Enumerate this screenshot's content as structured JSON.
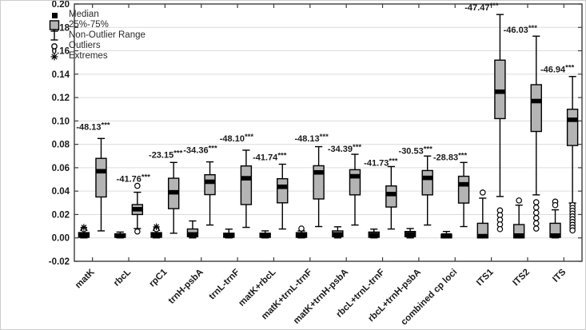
{
  "legend": {
    "items": [
      {
        "label": "Median",
        "icon": "median-square"
      },
      {
        "label": "25%-75%",
        "icon": "quartile-box"
      },
      {
        "label": "Non-Outlier Range",
        "icon": "whisker-range"
      },
      {
        "label": "Outliers",
        "icon": "outlier-circle"
      },
      {
        "label": "Extremes",
        "icon": "extreme-asterisk"
      }
    ]
  },
  "chart_data": {
    "type": "box",
    "title": "",
    "xlabel": "",
    "ylabel": "",
    "ylim": [
      -0.02,
      0.2
    ],
    "grid": true,
    "legend_position": "top-left",
    "yticks": [
      {
        "value": 0.2,
        "label": "0.20"
      },
      {
        "value": 0.18,
        "label": "0.18"
      },
      {
        "value": 0.16,
        "label": "0.16"
      },
      {
        "value": 0.14,
        "label": "0.14"
      },
      {
        "value": 0.12,
        "label": "0.12"
      },
      {
        "value": 0.1,
        "label": "0.10"
      },
      {
        "value": 0.08,
        "label": "0.08"
      },
      {
        "value": 0.06,
        "label": "0.06"
      },
      {
        "value": 0.04,
        "label": "0.04"
      },
      {
        "value": 0.02,
        "label": "0.02"
      },
      {
        "value": 0.0,
        "label": "0.00"
      },
      {
        "value": -0.02,
        "label": "-0.02"
      }
    ],
    "colors": {
      "box_fill": "#b4b4b4",
      "box_stroke": "#000000",
      "median": "#000000",
      "grid": "#dcdcdc",
      "axis": "#3c3c3c",
      "text": "#1a1a1a"
    },
    "categories": [
      {
        "label": "matK",
        "annotation": "-48.13***",
        "annotation_y": 0.0925,
        "annotation_dx": -10,
        "left": {
          "low": 0.0,
          "q1": 0.0005,
          "median": 0.0025,
          "q3": 0.0045,
          "high": 0.0065,
          "outliers": [
            0.0075
          ],
          "extremes": [
            0.009
          ]
        },
        "right": {
          "low": 0.006,
          "q1": 0.035,
          "median": 0.057,
          "q3": 0.068,
          "high": 0.085,
          "outliers": [],
          "extremes": []
        }
      },
      {
        "label": "rbcL",
        "annotation": "-41.76***",
        "annotation_y": 0.048,
        "annotation_dx": -5,
        "left": {
          "low": 0.0,
          "q1": 0.0005,
          "median": 0.002,
          "q3": 0.0035,
          "high": 0.005,
          "outliers": [],
          "extremes": []
        },
        "right": {
          "low": 0.008,
          "q1": 0.02,
          "median": 0.0245,
          "q3": 0.0285,
          "high": 0.039,
          "outliers": [
            0.0445,
            0.0055
          ],
          "extremes": []
        }
      },
      {
        "label": "rpC1",
        "annotation": "-23.15***",
        "annotation_y": 0.0685,
        "annotation_dx": -10,
        "left": {
          "low": 0.0,
          "q1": 0.0005,
          "median": 0.0025,
          "q3": 0.0045,
          "high": 0.0065,
          "outliers": [
            0.0075
          ],
          "extremes": [
            0.0095
          ]
        },
        "right": {
          "low": 0.004,
          "q1": 0.025,
          "median": 0.039,
          "q3": 0.051,
          "high": 0.0645,
          "outliers": [],
          "extremes": []
        }
      },
      {
        "label": "trnH-psbA",
        "annotation": "-34.36***",
        "annotation_y": 0.0725,
        "annotation_dx": -12,
        "left": {
          "low": 0.0,
          "q1": 0.001,
          "median": 0.003,
          "q3": 0.0076,
          "high": 0.0145,
          "outliers": [],
          "extremes": []
        },
        "right": {
          "low": 0.011,
          "q1": 0.037,
          "median": 0.048,
          "q3": 0.054,
          "high": 0.065,
          "outliers": [],
          "extremes": []
        }
      },
      {
        "label": "trnL-trnF",
        "annotation": "-48.10***",
        "annotation_y": 0.0825,
        "annotation_dx": -12,
        "left": {
          "low": 0.0,
          "q1": 0.0005,
          "median": 0.002,
          "q3": 0.004,
          "high": 0.0075,
          "outliers": [],
          "extremes": []
        },
        "right": {
          "low": 0.009,
          "q1": 0.0285,
          "median": 0.051,
          "q3": 0.0615,
          "high": 0.075,
          "outliers": [],
          "extremes": []
        }
      },
      {
        "label": "matK+rbcL",
        "annotation": "-41.74***",
        "annotation_y": 0.0665,
        "annotation_dx": -16,
        "left": {
          "low": 0.0,
          "q1": 0.0005,
          "median": 0.002,
          "q3": 0.004,
          "high": 0.006,
          "outliers": [],
          "extremes": []
        },
        "right": {
          "low": 0.0076,
          "q1": 0.03,
          "median": 0.0437,
          "q3": 0.0506,
          "high": 0.063,
          "outliers": [],
          "extremes": []
        }
      },
      {
        "label": "matK+trnL-trnF",
        "annotation": "-48.13***",
        "annotation_y": 0.0825,
        "annotation_dx": -9,
        "left": {
          "low": 0.0,
          "q1": 0.0005,
          "median": 0.0025,
          "q3": 0.0045,
          "high": 0.006,
          "outliers": [
            0.008
          ],
          "extremes": []
        },
        "right": {
          "low": 0.0097,
          "q1": 0.0333,
          "median": 0.056,
          "q3": 0.0617,
          "high": 0.078,
          "outliers": [],
          "extremes": []
        }
      },
      {
        "label": "matK+trnH-psbA",
        "annotation": "-34.39***",
        "annotation_y": 0.0735,
        "annotation_dx": -13,
        "left": {
          "low": 0.0,
          "q1": 0.001,
          "median": 0.003,
          "q3": 0.006,
          "high": 0.0095,
          "outliers": [],
          "extremes": []
        },
        "right": {
          "low": 0.011,
          "q1": 0.0368,
          "median": 0.0527,
          "q3": 0.0583,
          "high": 0.0715,
          "outliers": [],
          "extremes": []
        }
      },
      {
        "label": "rbcL+trnL-trnF",
        "annotation": "-41.73***",
        "annotation_y": 0.0615,
        "annotation_dx": -13,
        "left": {
          "low": 0.0,
          "q1": 0.0005,
          "median": 0.0025,
          "q3": 0.005,
          "high": 0.0075,
          "outliers": [],
          "extremes": []
        },
        "right": {
          "low": 0.0076,
          "q1": 0.0264,
          "median": 0.0375,
          "q3": 0.0444,
          "high": 0.061,
          "outliers": [],
          "extremes": []
        }
      },
      {
        "label": "rbcL+trnH-psbA",
        "annotation": "-30.53***",
        "annotation_y": 0.072,
        "annotation_dx": -15,
        "left": {
          "low": 0.0,
          "q1": 0.001,
          "median": 0.003,
          "q3": 0.0055,
          "high": 0.008,
          "outliers": [],
          "extremes": []
        },
        "right": {
          "low": 0.011,
          "q1": 0.0368,
          "median": 0.0513,
          "q3": 0.0576,
          "high": 0.07,
          "outliers": [],
          "extremes": []
        }
      },
      {
        "label": "combined cp loci",
        "annotation": "-28.83***",
        "annotation_y": 0.0665,
        "annotation_dx": -17,
        "left": {
          "low": 0.0,
          "q1": 0.0,
          "median": 0.002,
          "q3": 0.003,
          "high": 0.0055,
          "outliers": [],
          "extremes": []
        },
        "right": {
          "low": 0.0097,
          "q1": 0.0298,
          "median": 0.0458,
          "q3": 0.0527,
          "high": 0.0645,
          "outliers": [],
          "extremes": []
        }
      },
      {
        "label": "ITS1",
        "annotation": "-47.47***",
        "annotation_y": 0.1945,
        "annotation_dx": -23,
        "left": {
          "low": 0.0,
          "q1": 0.0,
          "median": 0.0015,
          "q3": 0.0125,
          "high": 0.034,
          "outliers": [
            0.0388
          ],
          "extremes": []
        },
        "right": {
          "low": 0.0354,
          "q1": 0.102,
          "median": 0.125,
          "q3": 0.152,
          "high": 0.191,
          "outliers": [
            0.0235,
            0.0195,
            0.0155,
            0.0115,
            0.0075
          ],
          "extremes": []
        }
      },
      {
        "label": "ITS2",
        "annotation": "-46.03***",
        "annotation_y": 0.1755,
        "annotation_dx": -20,
        "left": {
          "low": 0.0,
          "q1": 0.0,
          "median": 0.002,
          "q3": 0.0114,
          "high": 0.028,
          "outliers": [
            0.032
          ],
          "extremes": []
        },
        "right": {
          "low": 0.0368,
          "q1": 0.091,
          "median": 0.117,
          "q3": 0.131,
          "high": 0.1725,
          "outliers": [
            0.0305,
            0.026,
            0.0215,
            0.017,
            0.0125,
            0.008
          ],
          "extremes": []
        }
      },
      {
        "label": "ITS",
        "annotation": "-46.94***",
        "annotation_y": 0.1415,
        "annotation_dx": -19,
        "left": {
          "low": 0.0,
          "q1": 0.0005,
          "median": 0.002,
          "q3": 0.0125,
          "high": 0.024,
          "outliers": [
            0.031,
            0.028
          ],
          "extremes": []
        },
        "right": {
          "low": 0.0298,
          "q1": 0.079,
          "median": 0.101,
          "q3": 0.11,
          "high": 0.138,
          "outliers": [
            0.028,
            0.0256,
            0.0232,
            0.0208,
            0.0184,
            0.016,
            0.0136,
            0.0112,
            0.0088,
            0.0064
          ],
          "extremes": []
        }
      }
    ]
  }
}
